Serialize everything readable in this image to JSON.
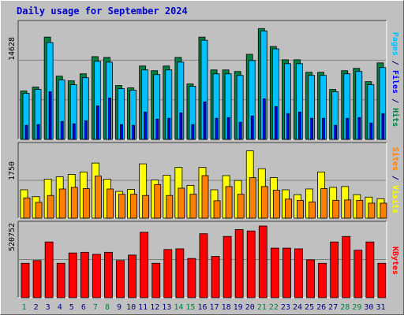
{
  "title": "Daily usage for September 2024",
  "colors": {
    "hits": "#008040",
    "files": "#00c0ff",
    "pages": "#0000ff",
    "visits": "#ffff00",
    "sites": "#ff8000",
    "kbytes": "#ff0000",
    "day_normal": "#008040",
    "day_weekend": "#008040",
    "day_default": "#000080",
    "legend_slash": "#000080",
    "background": "#c0c0c0",
    "gridline": "#808080"
  },
  "chart_data": [
    {
      "type": "bar",
      "title": "Daily usage for September 2024",
      "panel": "top",
      "categories": [
        "1",
        "2",
        "3",
        "4",
        "5",
        "6",
        "7",
        "8",
        "9",
        "10",
        "11",
        "12",
        "13",
        "14",
        "15",
        "16",
        "17",
        "18",
        "19",
        "20",
        "21",
        "22",
        "23",
        "24",
        "25",
        "26",
        "27",
        "28",
        "29",
        "30",
        "31"
      ],
      "ylim": [
        0,
        14628
      ],
      "max_label": "14628",
      "legend": [
        "Hits",
        "Files",
        "Pages"
      ],
      "series": [
        {
          "name": "Hits",
          "values": [
            6200,
            6700,
            13100,
            8100,
            7500,
            8400,
            10600,
            10500,
            6900,
            6600,
            9400,
            8800,
            9400,
            10500,
            7100,
            13100,
            8900,
            8900,
            8700,
            10900,
            14200,
            11900,
            10200,
            10200,
            8600,
            8600,
            6400,
            8800,
            9100,
            7400,
            9800
          ]
        },
        {
          "name": "Files",
          "values": [
            5900,
            6400,
            12400,
            7600,
            7000,
            7900,
            10000,
            9900,
            6500,
            6300,
            8900,
            8300,
            8900,
            9900,
            6800,
            12700,
            8400,
            8400,
            8200,
            10100,
            13900,
            11600,
            9700,
            9700,
            8200,
            8200,
            6100,
            8400,
            8700,
            7000,
            9200
          ]
        },
        {
          "name": "Pages",
          "values": [
            1800,
            1900,
            6100,
            2300,
            2000,
            2400,
            4300,
            5300,
            1900,
            1800,
            3500,
            2600,
            2700,
            3400,
            1900,
            4800,
            2700,
            2800,
            2200,
            3000,
            5200,
            4200,
            3300,
            3500,
            2700,
            2700,
            1800,
            2700,
            2800,
            2100,
            3300
          ]
        }
      ]
    },
    {
      "type": "bar",
      "panel": "middle",
      "categories": [
        "1",
        "2",
        "3",
        "4",
        "5",
        "6",
        "7",
        "8",
        "9",
        "10",
        "11",
        "12",
        "13",
        "14",
        "15",
        "16",
        "17",
        "18",
        "19",
        "20",
        "21",
        "22",
        "23",
        "24",
        "25",
        "26",
        "27",
        "28",
        "29",
        "30",
        "31"
      ],
      "ylim": [
        0,
        1750
      ],
      "max_label": "1750",
      "legend": [
        "Sites",
        "Visits"
      ],
      "series": [
        {
          "name": "Visits",
          "values": [
            700,
            530,
            960,
            1020,
            1080,
            1140,
            1360,
            960,
            660,
            710,
            1340,
            940,
            1060,
            1250,
            810,
            1250,
            700,
            1050,
            930,
            1660,
            1220,
            1000,
            700,
            580,
            720,
            1140,
            760,
            780,
            580,
            520,
            480
          ]
        },
        {
          "name": "Sites",
          "values": [
            500,
            390,
            560,
            720,
            760,
            730,
            1040,
            720,
            590,
            590,
            560,
            830,
            560,
            740,
            590,
            1050,
            430,
            780,
            590,
            1000,
            780,
            690,
            470,
            440,
            400,
            730,
            440,
            450,
            440,
            370,
            370
          ]
        }
      ]
    },
    {
      "type": "bar",
      "panel": "bottom",
      "categories": [
        "1",
        "2",
        "3",
        "4",
        "5",
        "6",
        "7",
        "8",
        "9",
        "10",
        "11",
        "12",
        "13",
        "14",
        "15",
        "16",
        "17",
        "18",
        "19",
        "20",
        "21",
        "22",
        "23",
        "24",
        "25",
        "26",
        "27",
        "28",
        "29",
        "30",
        "31"
      ],
      "ylim": [
        0,
        520752
      ],
      "max_label": "520752",
      "legend": [
        "KBytes"
      ],
      "series": [
        {
          "name": "KBytes",
          "values": [
            250000,
            270000,
            405000,
            250000,
            325000,
            330000,
            315000,
            330000,
            270000,
            310000,
            475000,
            250000,
            350000,
            355000,
            285000,
            465000,
            300000,
            445000,
            495000,
            485000,
            520752,
            360000,
            360000,
            355000,
            275000,
            250000,
            405000,
            445000,
            345000,
            405000,
            250000
          ]
        }
      ]
    }
  ],
  "x_axis": {
    "weekend_days": [
      "1",
      "7",
      "8",
      "14",
      "15",
      "21",
      "22",
      "28",
      "29"
    ]
  }
}
